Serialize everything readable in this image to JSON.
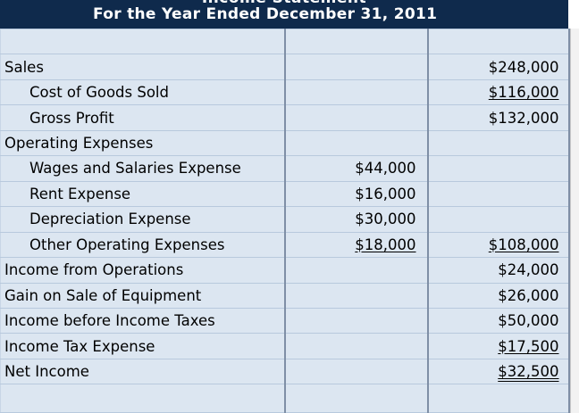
{
  "header": {
    "cut_title": "Income Statement",
    "title": "For the Year Ended December 31, 2011"
  },
  "rows": [
    {
      "label": "",
      "mid": "",
      "right": ""
    },
    {
      "label": "Sales",
      "mid": "",
      "right": "$248,000"
    },
    {
      "label": "Cost of Goods Sold",
      "mid": "",
      "right": "$116,000"
    },
    {
      "label": "Gross Profit",
      "mid": "",
      "right": "$132,000"
    },
    {
      "label": "Operating Expenses",
      "mid": "",
      "right": ""
    },
    {
      "label": "Wages and Salaries Expense",
      "mid": "$44,000",
      "right": ""
    },
    {
      "label": "Rent Expense",
      "mid": "$16,000",
      "right": ""
    },
    {
      "label": "Depreciation Expense",
      "mid": "$30,000",
      "right": ""
    },
    {
      "label": "Other Operating Expenses",
      "mid": "$18,000",
      "right": "$108,000"
    },
    {
      "label": "Income from Operations",
      "mid": "",
      "right": "$24,000"
    },
    {
      "label": "Gain on Sale of Equipment",
      "mid": "",
      "right": "$26,000"
    },
    {
      "label": "Income before Income Taxes",
      "mid": "",
      "right": "$50,000"
    },
    {
      "label": "Income Tax Expense",
      "mid": "",
      "right": "$17,500"
    },
    {
      "label": "Net Income",
      "mid": "",
      "right": "$32,500"
    },
    {
      "label": "",
      "mid": "",
      "right": ""
    }
  ]
}
